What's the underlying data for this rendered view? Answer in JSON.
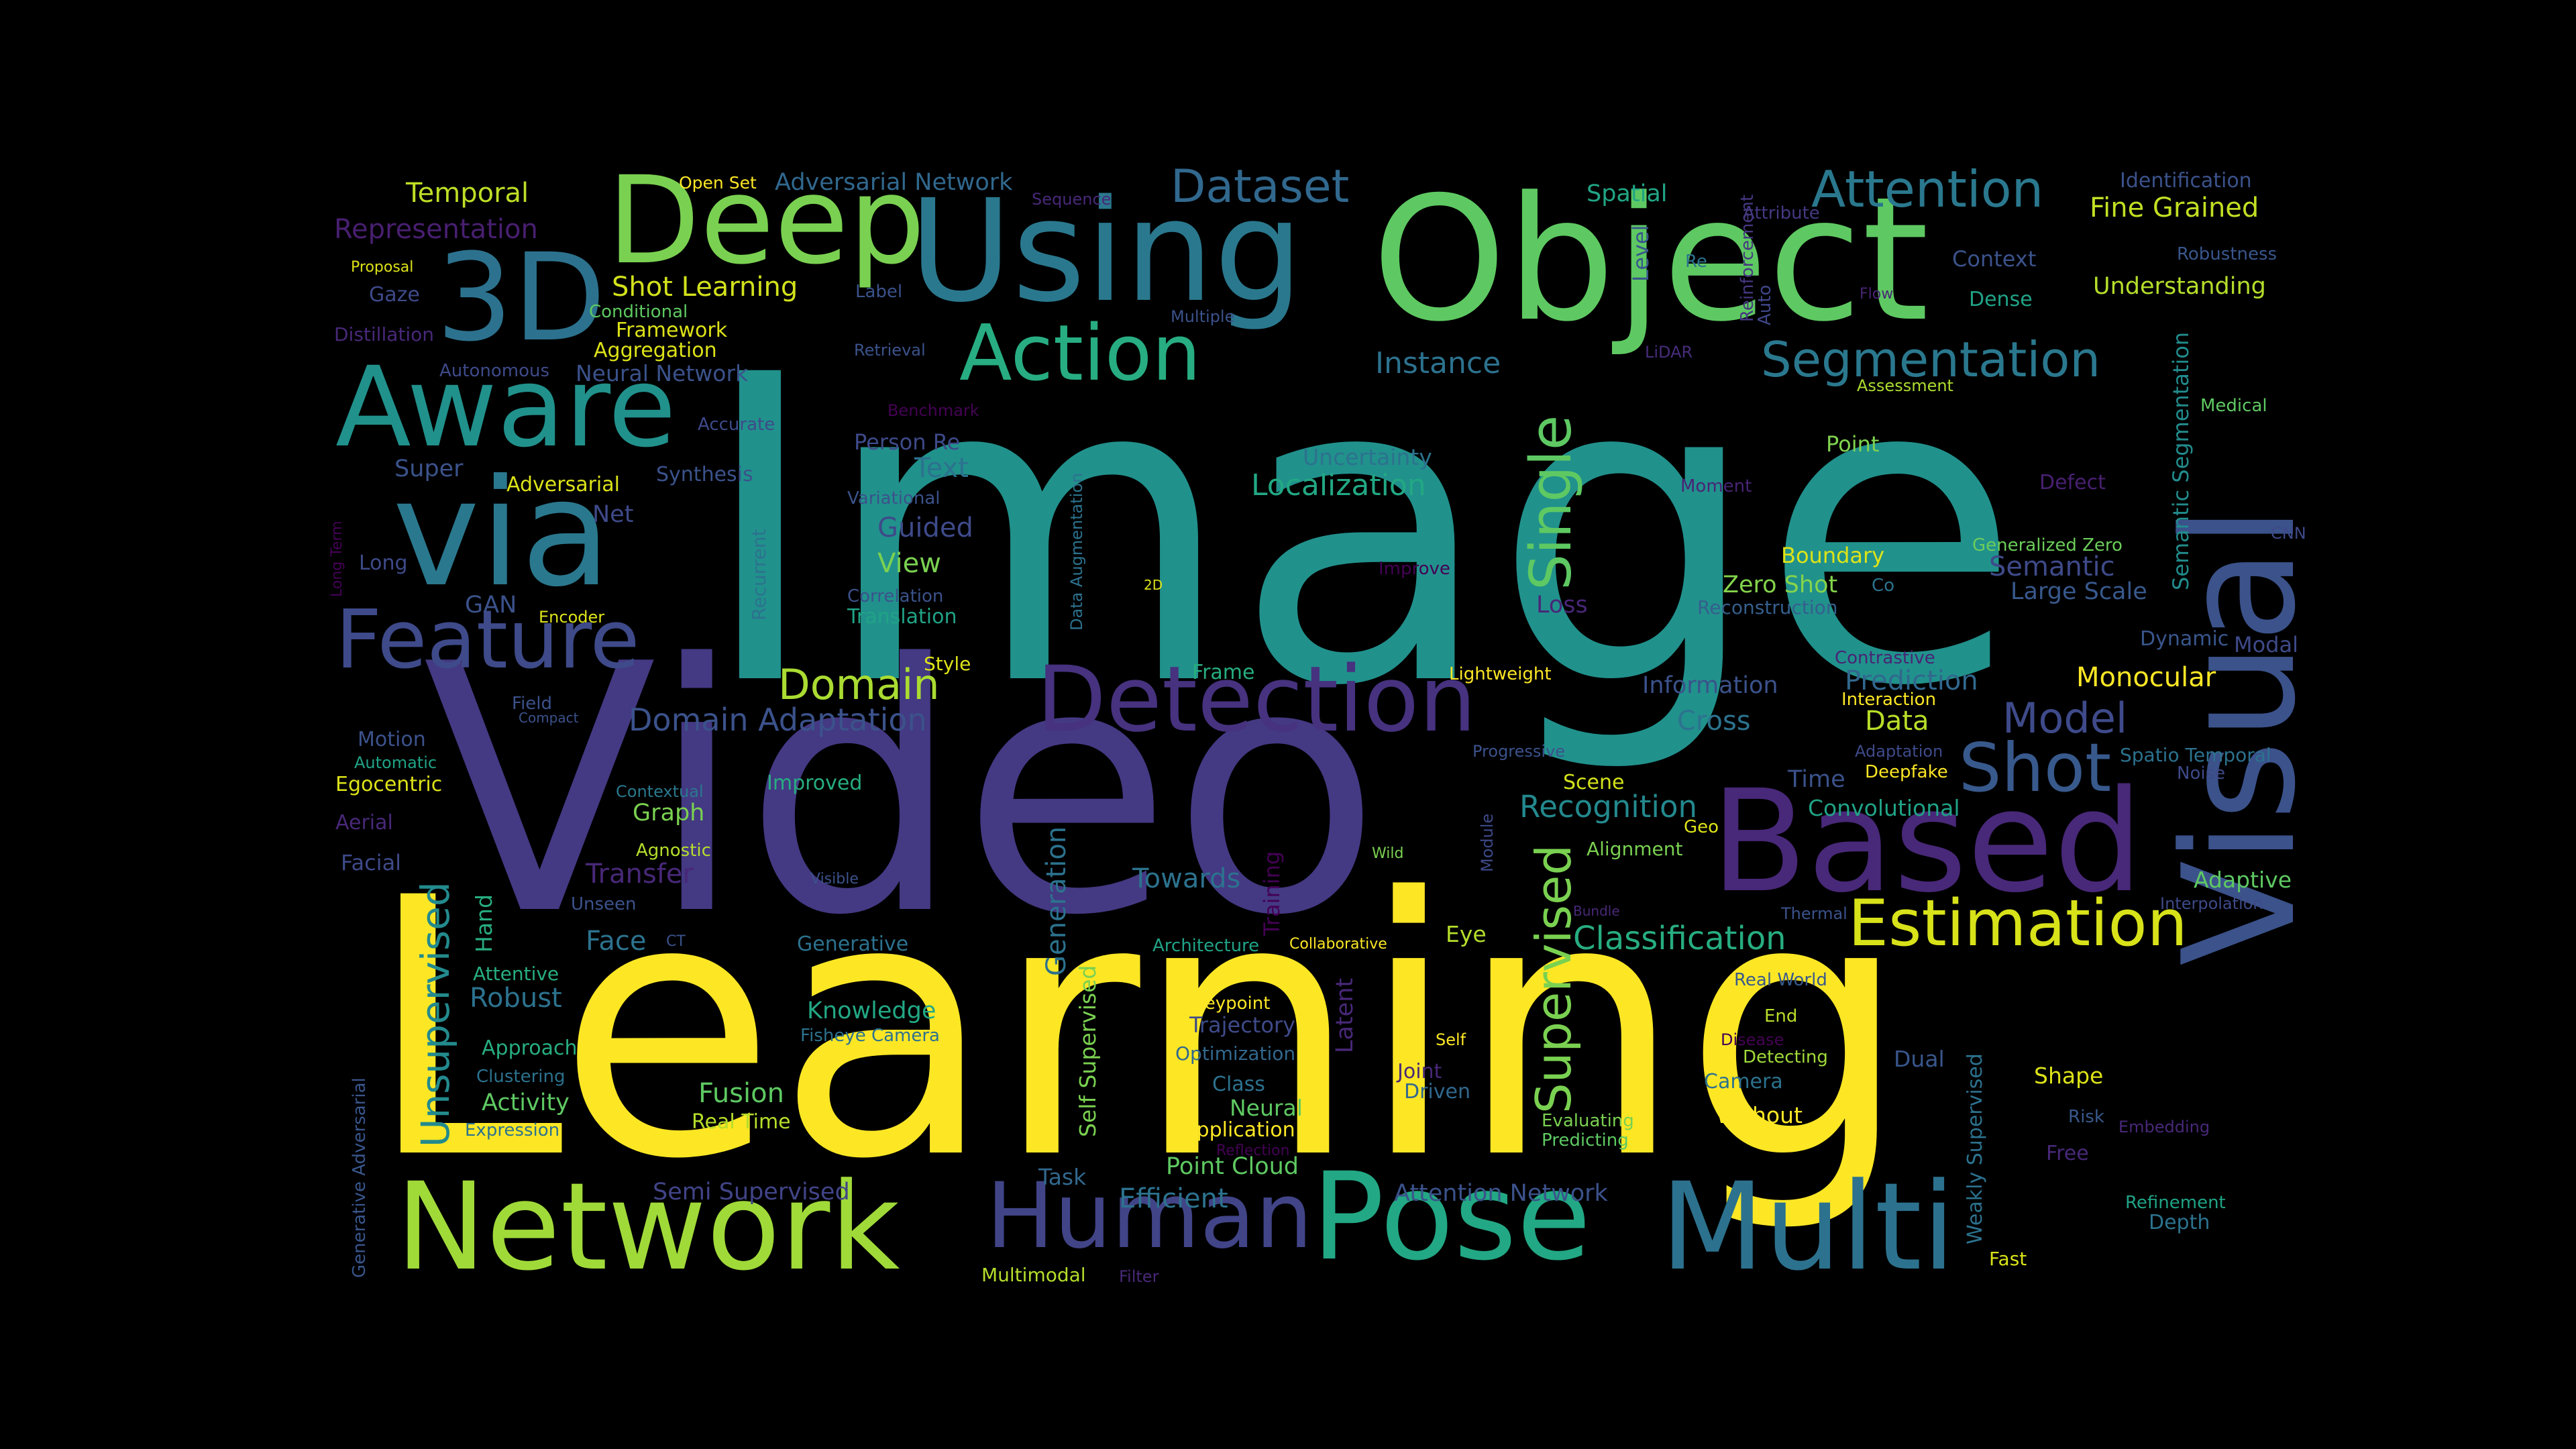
{
  "words": [
    {
      "text": "Image",
      "color": "#21918c"
    },
    {
      "text": "Learning",
      "color": "#fde725"
    },
    {
      "text": "Video",
      "color": "#443983"
    },
    {
      "text": "Object",
      "color": "#5ec962"
    },
    {
      "text": "Using",
      "color": "#2a788e"
    },
    {
      "text": "Deep",
      "color": "#7ad151"
    },
    {
      "text": "Visual",
      "color": "#3b528b"
    },
    {
      "text": "Based",
      "color": "#482878"
    },
    {
      "text": "via",
      "color": "#2a788e"
    },
    {
      "text": "3D",
      "color": "#2c728e"
    },
    {
      "text": "Aware",
      "color": "#21918c"
    },
    {
      "text": "Feature",
      "color": "#3e4a89"
    },
    {
      "text": "Network",
      "color": "#a0da39"
    },
    {
      "text": "Pose",
      "color": "#22a884"
    },
    {
      "text": "Multi",
      "color": "#2c728e"
    },
    {
      "text": "Human",
      "color": "#414487"
    },
    {
      "text": "Detection",
      "color": "#46327e"
    },
    {
      "text": "Action",
      "color": "#27ad81"
    },
    {
      "text": "Attention",
      "color": "#2a788e"
    },
    {
      "text": "Segmentation",
      "color": "#2a788e"
    },
    {
      "text": "Dataset",
      "color": "#31688e"
    },
    {
      "text": "Estimation",
      "color": "#d8e219"
    },
    {
      "text": "Shot",
      "color": "#38598c"
    },
    {
      "text": "Single",
      "color": "#5ec962"
    },
    {
      "text": "Supervised",
      "color": "#7ad151"
    },
    {
      "text": "Unsupervised",
      "color": "#238a8d"
    },
    {
      "text": "Domain",
      "color": "#aadc32"
    },
    {
      "text": "Domain Adaptation",
      "color": "#3b528b"
    },
    {
      "text": "Model",
      "color": "#3e4a89"
    },
    {
      "text": "Classification",
      "color": "#27ad81"
    },
    {
      "text": "Recognition",
      "color": "#23898e"
    },
    {
      "text": "Instance",
      "color": "#2c728e"
    },
    {
      "text": "Localization",
      "color": "#22a884"
    },
    {
      "text": "Temporal",
      "color": "#bddf26"
    },
    {
      "text": "Representation",
      "color": "#481f70"
    },
    {
      "text": "Shot Learning",
      "color": "#d2e21b"
    },
    {
      "text": "Adversarial Network",
      "color": "#31688e"
    },
    {
      "text": "Open Set",
      "color": "#fde725"
    },
    {
      "text": "Sequence",
      "color": "#482878"
    },
    {
      "text": "Spatial",
      "color": "#21a585"
    },
    {
      "text": "Level",
      "color": "#39568c"
    },
    {
      "text": "Identification",
      "color": "#3b528b"
    },
    {
      "text": "Fine Grained",
      "color": "#c2df23"
    },
    {
      "text": "Robustness",
      "color": "#39568c"
    },
    {
      "text": "Context",
      "color": "#3b528b"
    },
    {
      "text": "Understanding",
      "color": "#b5de2b"
    },
    {
      "text": "Dense",
      "color": "#20a386"
    },
    {
      "text": "Attribute",
      "color": "#443983"
    },
    {
      "text": "Reinforcement",
      "color": "#453781"
    },
    {
      "text": "Auto",
      "color": "#3f4788"
    },
    {
      "text": "Re",
      "color": "#2c728e"
    },
    {
      "text": "Flow",
      "color": "#482475"
    },
    {
      "text": "LiDAR",
      "color": "#472d7b"
    },
    {
      "text": "Assessment",
      "color": "#addc30"
    },
    {
      "text": "Semantic Segmentation",
      "color": "#228c8d"
    },
    {
      "text": "Medical",
      "color": "#5ec962"
    },
    {
      "text": "Point",
      "color": "#7fd34e"
    },
    {
      "text": "Defect",
      "color": "#482071"
    },
    {
      "text": "Moment",
      "color": "#482475"
    },
    {
      "text": "Generalized Zero",
      "color": "#6ccd5a"
    },
    {
      "text": "CNN",
      "color": "#3e4a89"
    },
    {
      "text": "Semantic",
      "color": "#3e4a89"
    },
    {
      "text": "Large Scale",
      "color": "#38598c"
    },
    {
      "text": "Boundary",
      "color": "#dde318"
    },
    {
      "text": "Zero Shot",
      "color": "#84d44b"
    },
    {
      "text": "Co",
      "color": "#2c728e"
    },
    {
      "text": "Reconstruction",
      "color": "#355f8d"
    },
    {
      "text": "Improve",
      "color": "#440154"
    },
    {
      "text": "Loss",
      "color": "#482677"
    },
    {
      "text": "Dynamic",
      "color": "#39568c"
    },
    {
      "text": "Modal",
      "color": "#3e4a89"
    },
    {
      "text": "Contrastive",
      "color": "#482475"
    },
    {
      "text": "Interaction",
      "color": "#fde725"
    },
    {
      "text": "Prediction",
      "color": "#31688e"
    },
    {
      "text": "Monocular",
      "color": "#fde725"
    },
    {
      "text": "Information",
      "color": "#3b528b"
    },
    {
      "text": "Cross",
      "color": "#2c728e"
    },
    {
      "text": "Data",
      "color": "#b8de29"
    },
    {
      "text": "Lightweight",
      "color": "#fde725"
    },
    {
      "text": "Progressive",
      "color": "#3b528b"
    },
    {
      "text": "Adaptation",
      "color": "#3e4a89"
    },
    {
      "text": "Deepfake",
      "color": "#fde725"
    },
    {
      "text": "Time",
      "color": "#3b528b"
    },
    {
      "text": "Spatio Temporal",
      "color": "#2c728e"
    },
    {
      "text": "Noise",
      "color": "#3e4a89"
    },
    {
      "text": "Scene",
      "color": "#d2e21b"
    },
    {
      "text": "Convolutional",
      "color": "#20a386"
    },
    {
      "text": "Alignment",
      "color": "#7ad151"
    },
    {
      "text": "Geo",
      "color": "#dde318"
    },
    {
      "text": "Adaptive",
      "color": "#5ec962"
    },
    {
      "text": "Interpolation",
      "color": "#3e4a89"
    },
    {
      "text": "Bundle",
      "color": "#482878"
    },
    {
      "text": "Thermal",
      "color": "#3b528b"
    },
    {
      "text": "Eye",
      "color": "#b5de2b"
    },
    {
      "text": "Wild",
      "color": "#7ad151"
    },
    {
      "text": "Module",
      "color": "#3e4a89"
    },
    {
      "text": "Real World",
      "color": "#38598c"
    },
    {
      "text": "End",
      "color": "#b8de29"
    },
    {
      "text": "Disease",
      "color": "#440154"
    },
    {
      "text": "Detecting",
      "color": "#a0da39"
    },
    {
      "text": "Dual",
      "color": "#39568c"
    },
    {
      "text": "Camera",
      "color": "#2c728e"
    },
    {
      "text": "Shape",
      "color": "#dde318"
    },
    {
      "text": "Weakly Supervised",
      "color": "#2c728e"
    },
    {
      "text": "Risk",
      "color": "#38598c"
    },
    {
      "text": "Embedding",
      "color": "#482878"
    },
    {
      "text": "Free",
      "color": "#482878"
    },
    {
      "text": "Refinement",
      "color": "#20a386"
    },
    {
      "text": "Depth",
      "color": "#2c728e"
    },
    {
      "text": "Fast",
      "color": "#d8e219"
    },
    {
      "text": "Without",
      "color": "#fde725"
    },
    {
      "text": "Self",
      "color": "#fde725"
    },
    {
      "text": "Evaluating",
      "color": "#7ad151"
    },
    {
      "text": "Predicting",
      "color": "#5ec962"
    },
    {
      "text": "Joint",
      "color": "#482878"
    },
    {
      "text": "Driven",
      "color": "#31688e"
    },
    {
      "text": "Attention Network",
      "color": "#3b528b"
    },
    {
      "text": "Point Cloud",
      "color": "#5ec962"
    },
    {
      "text": "Efficient",
      "color": "#2c728e"
    },
    {
      "text": "Task",
      "color": "#31688e"
    },
    {
      "text": "Application",
      "color": "#fde725"
    },
    {
      "text": "Reflection",
      "color": "#440154"
    },
    {
      "text": "Neural",
      "color": "#5ec962"
    },
    {
      "text": "Class",
      "color": "#2c728e"
    },
    {
      "text": "Optimization",
      "color": "#31688e"
    },
    {
      "text": "Trajectory",
      "color": "#3e4a89"
    },
    {
      "text": "Keypoint",
      "color": "#fde725"
    },
    {
      "text": "Latent",
      "color": "#482878"
    },
    {
      "text": "Architecture",
      "color": "#20a386"
    },
    {
      "text": "Collaborative",
      "color": "#fde725"
    },
    {
      "text": "Towards",
      "color": "#2c728e"
    },
    {
      "text": "Training",
      "color": "#440154"
    },
    {
      "text": "Generation",
      "color": "#2c728e"
    },
    {
      "text": "Visible",
      "color": "#3b528b"
    },
    {
      "text": "Generative",
      "color": "#2c728e"
    },
    {
      "text": "Self Supervised",
      "color": "#7ad151"
    },
    {
      "text": "Knowledge",
      "color": "#22a884"
    },
    {
      "text": "Fisheye Camera",
      "color": "#2c728e"
    },
    {
      "text": "Fusion",
      "color": "#5ec962"
    },
    {
      "text": "Real Time",
      "color": "#b5de2b"
    },
    {
      "text": "Semi Supervised",
      "color": "#414487"
    },
    {
      "text": "Multimodal",
      "color": "#b5de2b"
    },
    {
      "text": "Filter",
      "color": "#482878"
    },
    {
      "text": "Frame",
      "color": "#27ad81"
    },
    {
      "text": "Style",
      "color": "#dde318"
    },
    {
      "text": "Improved",
      "color": "#27ad81"
    },
    {
      "text": "Contextual",
      "color": "#2a788e"
    },
    {
      "text": "Graph",
      "color": "#7ad151"
    },
    {
      "text": "Agnostic",
      "color": "#b5de2b"
    },
    {
      "text": "Transfer",
      "color": "#482878"
    },
    {
      "text": "Unseen",
      "color": "#3b528b"
    },
    {
      "text": "Hand",
      "color": "#27ad81"
    },
    {
      "text": "Face",
      "color": "#2c728e"
    },
    {
      "text": "CT",
      "color": "#3b528b"
    },
    {
      "text": "Robust",
      "color": "#2c728e"
    },
    {
      "text": "Attentive",
      "color": "#27ad81"
    },
    {
      "text": "Approach",
      "color": "#27ad81"
    },
    {
      "text": "Clustering",
      "color": "#2c728e"
    },
    {
      "text": "Activity",
      "color": "#5ec962"
    },
    {
      "text": "Expression",
      "color": "#2c728e"
    },
    {
      "text": "Generative Adversarial",
      "color": "#39568c"
    },
    {
      "text": "Facial",
      "color": "#3e4a89"
    },
    {
      "text": "Aerial",
      "color": "#482878"
    },
    {
      "text": "Egocentric",
      "color": "#dde318"
    },
    {
      "text": "Automatic",
      "color": "#20a386"
    },
    {
      "text": "Motion",
      "color": "#3b528b"
    },
    {
      "text": "Field",
      "color": "#3b528b"
    },
    {
      "text": "Compact",
      "color": "#3b528b"
    },
    {
      "text": "Long Term",
      "color": "#440154"
    },
    {
      "text": "Long",
      "color": "#3e4a89"
    },
    {
      "text": "GAN",
      "color": "#3b528b"
    },
    {
      "text": "Encoder",
      "color": "#dde318"
    },
    {
      "text": "Recurrent",
      "color": "#2c728e"
    },
    {
      "text": "Net",
      "color": "#3e4a89"
    },
    {
      "text": "Synthesis",
      "color": "#3b528b"
    },
    {
      "text": "Adversarial",
      "color": "#dde318"
    },
    {
      "text": "Super",
      "color": "#3b528b"
    },
    {
      "text": "Accurate",
      "color": "#3e4a89"
    },
    {
      "text": "Neural Network",
      "color": "#3b528b"
    },
    {
      "text": "Autonomous",
      "color": "#3e4a89"
    },
    {
      "text": "Aggregation",
      "color": "#dde318"
    },
    {
      "text": "Framework",
      "color": "#dde318"
    },
    {
      "text": "Conditional",
      "color": "#5ec962"
    },
    {
      "text": "Distillation",
      "color": "#482878"
    },
    {
      "text": "Gaze",
      "color": "#3e4a89"
    },
    {
      "text": "Proposal",
      "color": "#dde318"
    },
    {
      "text": "Label",
      "color": "#3b528b"
    },
    {
      "text": "Retrieval",
      "color": "#3b528b"
    },
    {
      "text": "Multiple",
      "color": "#3b528b"
    },
    {
      "text": "Benchmark",
      "color": "#440154"
    },
    {
      "text": "Person Re",
      "color": "#3e4a89"
    },
    {
      "text": "Text",
      "color": "#2c728e"
    },
    {
      "text": "Variational",
      "color": "#3b528b"
    },
    {
      "text": "Guided",
      "color": "#3e4a89"
    },
    {
      "text": "View",
      "color": "#7ad151"
    },
    {
      "text": "Correlation",
      "color": "#3b528b"
    },
    {
      "text": "Translation",
      "color": "#20a386"
    },
    {
      "text": "Data Augmentation",
      "color": "#2c728e"
    },
    {
      "text": "2D",
      "color": "#dde318"
    },
    {
      "text": "Uncertainty",
      "color": "#2c728e"
    }
  ]
}
